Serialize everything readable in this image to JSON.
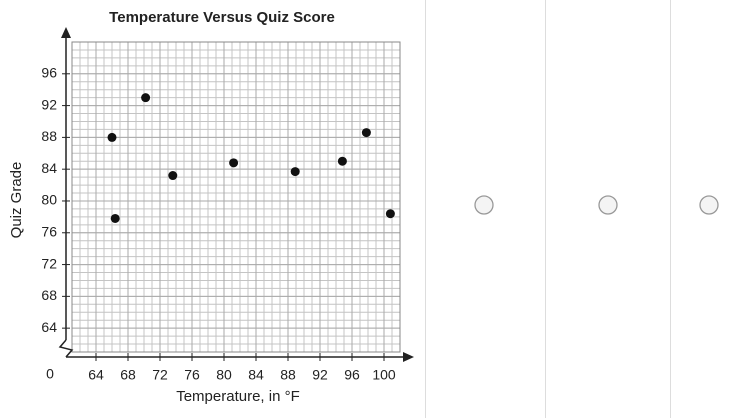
{
  "chart_data": {
    "type": "scatter",
    "title": "Temperature Versus Quiz Score",
    "xlabel": "Temperature, in °F",
    "ylabel": "Quiz Grade",
    "origin_label": "0",
    "x": [
      66,
      66.4,
      70.2,
      73.6,
      81.2,
      88.9,
      94.8,
      97.8,
      100.8
    ],
    "values": [
      88,
      77.8,
      93,
      83.2,
      84.8,
      83.7,
      85,
      88.6,
      78.4
    ],
    "color": "#111111",
    "xlim": [
      61,
      102
    ],
    "ylim": [
      61,
      100
    ],
    "xticks": [
      64,
      68,
      72,
      76,
      80,
      84,
      88,
      92,
      96,
      100
    ],
    "yticks": [
      64,
      68,
      72,
      76,
      80,
      84,
      88,
      92,
      96
    ],
    "grid": true
  }
}
